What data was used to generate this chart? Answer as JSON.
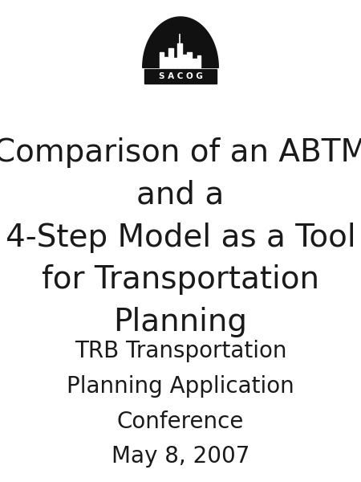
{
  "background_color": "#ffffff",
  "title_line1": "Comparison of an ABTM",
  "title_line2": "and a",
  "title_line3": "4-Step Model as a Tool",
  "title_line4": "for Transportation",
  "title_line5": "Planning",
  "subtitle_line1": "TRB Transportation",
  "subtitle_line2": "Planning Application",
  "subtitle_line3": "Conference",
  "subtitle_line4": "May 8, 2007",
  "title_fontsize": 28,
  "subtitle_fontsize": 20,
  "title_color": "#1a1a1a",
  "subtitle_color": "#1a1a1a",
  "logo_text": "S A C O G",
  "logo_text_color": "#ffffff",
  "logo_bg_color": "#111111",
  "fig_width": 4.5,
  "fig_height": 6.0
}
